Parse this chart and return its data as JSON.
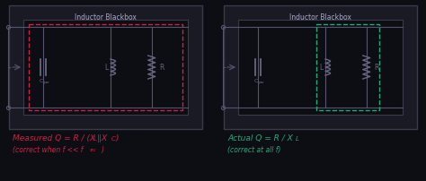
{
  "bg_color": "#0d0d14",
  "panel_color": "#1a1a24",
  "border_color": "#3a3a4a",
  "text_color": "#8888aa",
  "title_color": "#aaaacc",
  "red_color": "#cc2244",
  "green_color": "#22aa77",
  "red_dash_color": "#cc2244",
  "green_dash_color": "#22aa77",
  "component_color": "#666680",
  "wire_color": "#555570",
  "left_title": "Inductor Blackbox",
  "right_title": "Inductor Blackbox",
  "left_formula_line1": "Measured Q = R / (X_L||X_C)",
  "left_formula_line2": "(correct when f << f_src)",
  "right_formula_line1": "Actual Q = R / X_L",
  "right_formula_line2": "(correct at all f)"
}
